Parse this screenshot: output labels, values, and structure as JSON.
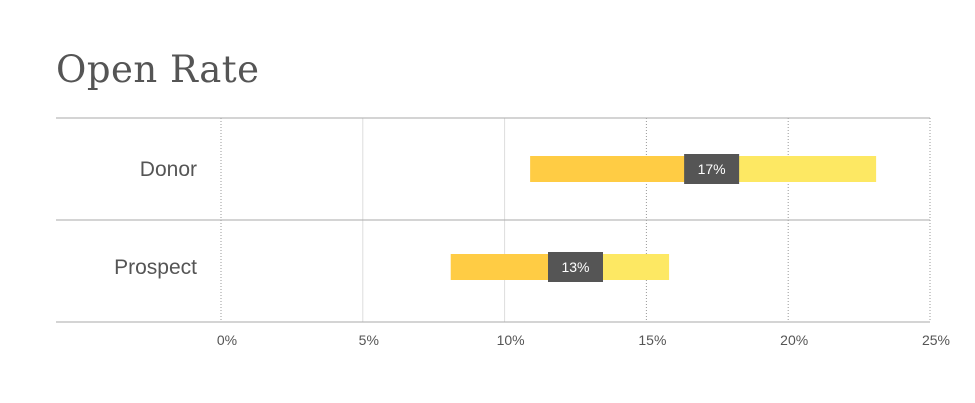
{
  "chart_data": {
    "type": "bar",
    "title": "Open Rate",
    "categories": [
      "Donor",
      "Prospect"
    ],
    "ranges": [
      {
        "category": "Donor",
        "low": 10.9,
        "high": 23.1,
        "median": 17.3,
        "label": "17%"
      },
      {
        "category": "Prospect",
        "low": 8.1,
        "high": 15.8,
        "median": 12.5,
        "label": "13%"
      }
    ],
    "xlim": [
      0,
      25
    ],
    "xticks": [
      0,
      5,
      10,
      15,
      20,
      25
    ],
    "xtick_labels": [
      "0%",
      "5%",
      "10%",
      "15%",
      "20%",
      "25%"
    ],
    "grid": true,
    "colors": {
      "low_segment": "#FFCC44",
      "high_segment": "#FDE863",
      "marker": "#555555",
      "grid": "#DDDDDD",
      "axis": "#AAAAAA"
    }
  }
}
